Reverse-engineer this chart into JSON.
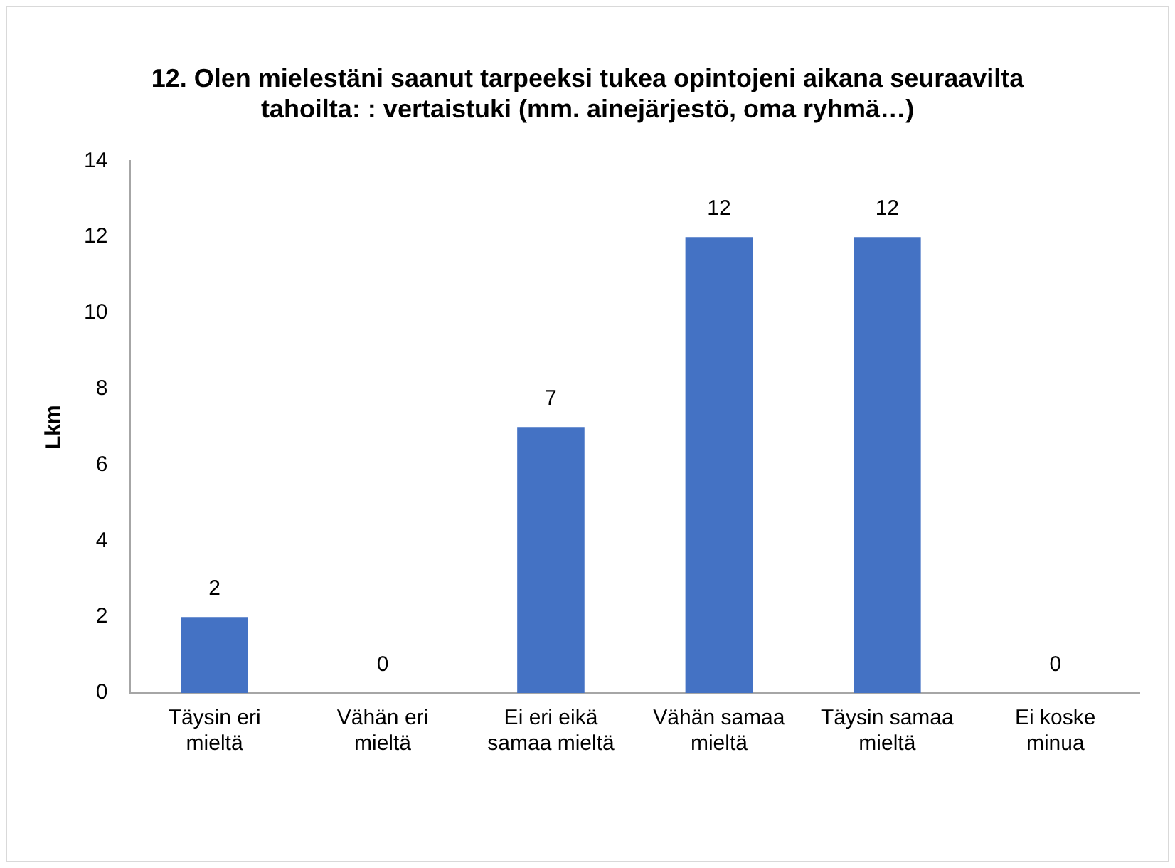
{
  "chart_data": {
    "type": "bar",
    "title": "12. Olen mielestäni saanut tarpeeksi tukea opintojeni aikana seuraavilta tahoilta: : vertaistuki (mm. ainejärjestö, oma ryhmä…)",
    "ylabel": "Lkm",
    "categories": [
      "Täysin eri mieltä",
      "Vähän eri mieltä",
      "Ei eri eikä samaa mieltä",
      "Vähän samaa mieltä",
      "Täysin samaa mieltä",
      "Ei koske minua"
    ],
    "values": [
      2,
      0,
      7,
      12,
      12,
      0
    ],
    "color": "#4472c4",
    "ylim": [
      0,
      14
    ],
    "yticks": [
      0,
      2,
      4,
      6,
      8,
      10,
      12,
      14
    ],
    "grid": false,
    "legend": false,
    "data_labels": true
  }
}
